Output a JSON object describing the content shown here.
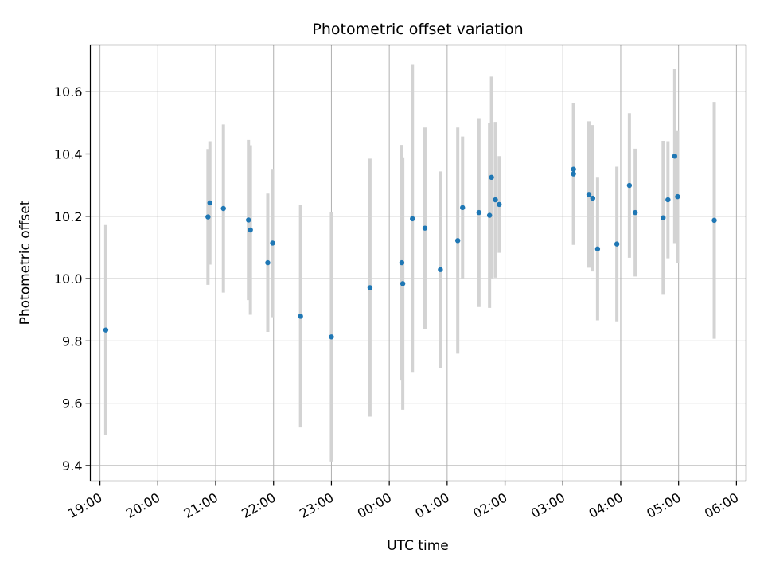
{
  "chart_data": {
    "type": "scatter",
    "title": "Photometric offset variation",
    "xlabel": "UTC time",
    "ylabel": "Photometric offset",
    "grid": true,
    "ylim": [
      9.35,
      10.75
    ],
    "xlim": [
      "18:50",
      "06:10"
    ],
    "y_ticks": [
      9.4,
      9.6,
      9.8,
      10.0,
      10.2,
      10.4,
      10.6
    ],
    "y_tick_labels": [
      "9.4",
      "9.6",
      "9.8",
      "10.0",
      "10.2",
      "10.4",
      "10.6"
    ],
    "x_ticks": [
      "19:00",
      "20:00",
      "21:00",
      "22:00",
      "23:00",
      "00:00",
      "01:00",
      "02:00",
      "03:00",
      "04:00",
      "05:00",
      "06:00"
    ],
    "x_tick_labels": [
      "19:00",
      "20:00",
      "21:00",
      "22:00",
      "23:00",
      "00:00",
      "01:00",
      "02:00",
      "03:00",
      "04:00",
      "05:00",
      "06:00"
    ],
    "marker_color": "#1f77b4",
    "errorbar_color": "#d3d3d3",
    "points": [
      {
        "x": "19:06",
        "y": 9.835,
        "err": 0.337
      },
      {
        "x": "20:52",
        "y": 10.198,
        "err": 0.218
      },
      {
        "x": "20:54",
        "y": 10.243,
        "err": 0.198
      },
      {
        "x": "21:08",
        "y": 10.225,
        "err": 0.27
      },
      {
        "x": "21:34",
        "y": 10.188,
        "err": 0.257
      },
      {
        "x": "21:36",
        "y": 10.156,
        "err": 0.272
      },
      {
        "x": "21:54",
        "y": 10.051,
        "err": 0.222
      },
      {
        "x": "21:59",
        "y": 10.114,
        "err": 0.238
      },
      {
        "x": "22:28",
        "y": 9.879,
        "err": 0.357
      },
      {
        "x": "23:00",
        "y": 9.813,
        "err": 0.4
      },
      {
        "x": "23:40",
        "y": 9.971,
        "err": 0.414
      },
      {
        "x": "00:13",
        "y": 10.051,
        "err": 0.378
      },
      {
        "x": "00:14",
        "y": 9.984,
        "err": 0.405
      },
      {
        "x": "00:24",
        "y": 10.192,
        "err": 0.494
      },
      {
        "x": "00:37",
        "y": 10.162,
        "err": 0.323
      },
      {
        "x": "00:53",
        "y": 10.029,
        "err": 0.315
      },
      {
        "x": "01:11",
        "y": 10.122,
        "err": 0.363
      },
      {
        "x": "01:16",
        "y": 10.228,
        "err": 0.228
      },
      {
        "x": "01:33",
        "y": 10.212,
        "err": 0.303
      },
      {
        "x": "01:44",
        "y": 10.203,
        "err": 0.297
      },
      {
        "x": "01:46",
        "y": 10.325,
        "err": 0.323
      },
      {
        "x": "01:50",
        "y": 10.253,
        "err": 0.25
      },
      {
        "x": "01:54",
        "y": 10.238,
        "err": 0.155
      },
      {
        "x": "03:11",
        "y": 10.351,
        "err": 0.0
      },
      {
        "x": "03:11",
        "y": 10.336,
        "err": 0.228
      },
      {
        "x": "03:27",
        "y": 10.27,
        "err": 0.235
      },
      {
        "x": "03:31",
        "y": 10.258,
        "err": 0.235
      },
      {
        "x": "03:36",
        "y": 10.095,
        "err": 0.229
      },
      {
        "x": "03:56",
        "y": 10.111,
        "err": 0.248
      },
      {
        "x": "04:09",
        "y": 10.299,
        "err": 0.232
      },
      {
        "x": "04:15",
        "y": 10.212,
        "err": 0.205
      },
      {
        "x": "04:44",
        "y": 10.195,
        "err": 0.247
      },
      {
        "x": "04:49",
        "y": 10.253,
        "err": 0.188
      },
      {
        "x": "04:56",
        "y": 10.393,
        "err": 0.279
      },
      {
        "x": "04:59",
        "y": 10.263,
        "err": 0.213
      },
      {
        "x": "05:37",
        "y": 10.187,
        "err": 0.38
      }
    ]
  }
}
